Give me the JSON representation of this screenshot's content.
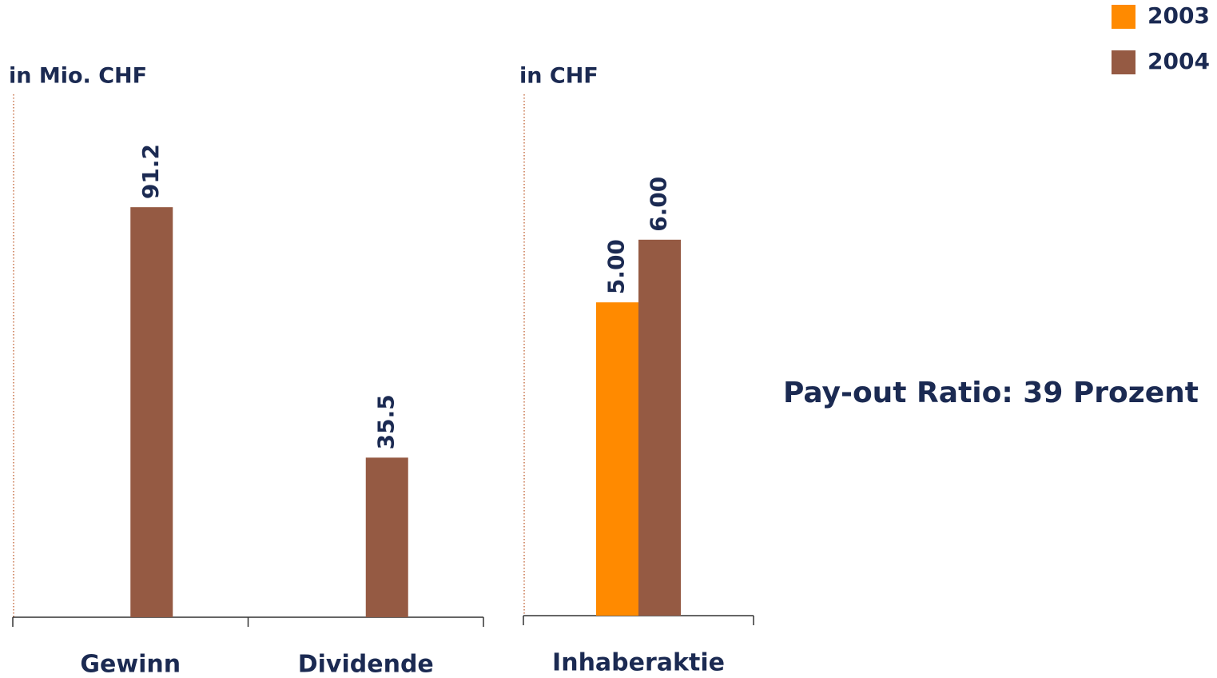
{
  "chart_data": [
    {
      "type": "bar",
      "axis_label": "in Mio. CHF",
      "categories": [
        "Gewinn",
        "Dividende"
      ],
      "series": [
        {
          "name": "2003",
          "color": "#ff8a00",
          "values": [
            null,
            null
          ]
        },
        {
          "name": "2004",
          "color": "#955a43",
          "values": [
            91.2,
            35.5
          ]
        }
      ],
      "ylim": [
        0,
        116.3
      ]
    },
    {
      "type": "bar",
      "axis_label": "in CHF",
      "categories": [
        "Inhaberaktie"
      ],
      "series": [
        {
          "color": "#ff8a00",
          "values": [
            5
          ],
          "value_labels": [
            "5.00"
          ]
        },
        {
          "color": "#955a43",
          "values": [
            6
          ],
          "value_labels": [
            "6.00"
          ]
        }
      ],
      "ylim": [
        0,
        8.32
      ]
    }
  ],
  "annotation": "Pay-out Ratio: 39 Prozent"
}
